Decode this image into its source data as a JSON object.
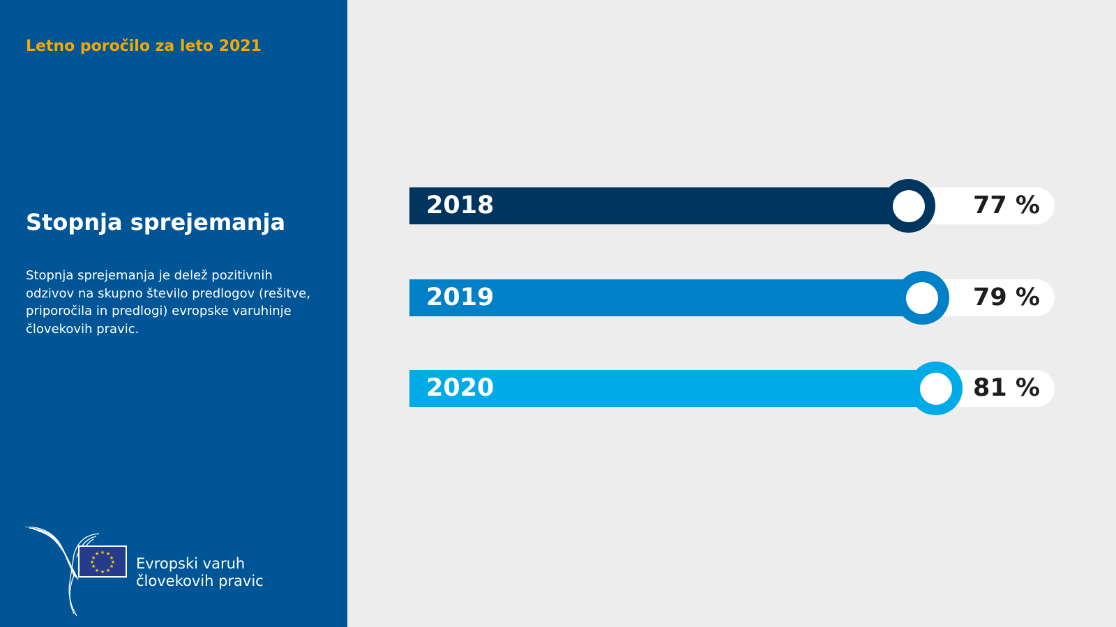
{
  "header": {
    "kicker": "Letno poročilo za leto 2021"
  },
  "sidebar": {
    "heading": "Stopnja sprejemanja",
    "description": "Stopnja sprejemanja je delež pozitivnih odzivov na skupno število predlogov (rešitve, priporočila in predlogi) evropske varuhinje človekovih pravic.",
    "logo_text_line1": "Evropski varuh",
    "logo_text_line2": "človekovih pravic"
  },
  "colors": {
    "panel": "#005596",
    "kicker": "#f6a800"
  },
  "chart_data": {
    "type": "bar",
    "orientation": "horizontal",
    "categories": [
      "2018",
      "2019",
      "2020"
    ],
    "values": [
      77,
      79,
      81
    ],
    "labels": [
      "77 %",
      "79 %",
      "81 %"
    ],
    "colors": [
      "#00355f",
      "#0080c6",
      "#00abe8"
    ],
    "xlim": [
      0,
      100
    ],
    "unit": "%"
  }
}
